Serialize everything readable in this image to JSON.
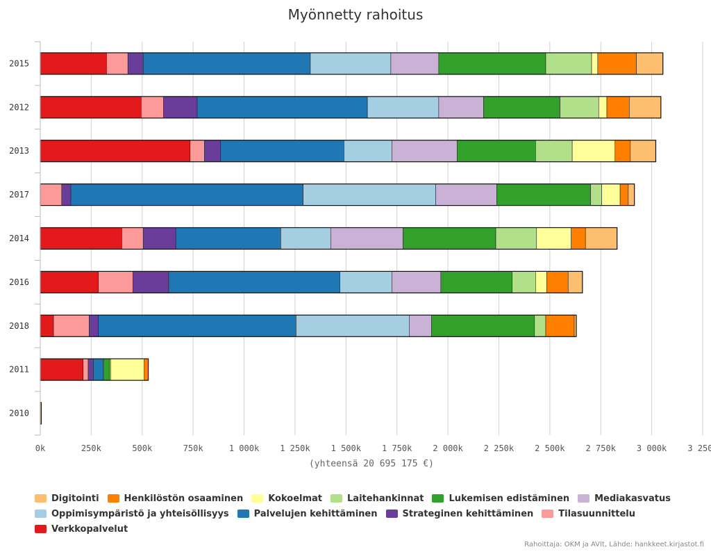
{
  "chart_data": {
    "type": "bar",
    "orientation": "horizontal",
    "stacked": true,
    "title": "Myönnetty rahoitus",
    "xlabel": "(yhteensä 20 695 175 €)",
    "ylabel": "",
    "xlim": [
      0,
      3250000
    ],
    "x_ticks": [
      0,
      250000,
      500000,
      750000,
      1000000,
      1250000,
      1500000,
      1750000,
      2000000,
      2250000,
      2500000,
      2750000,
      3000000,
      3250000
    ],
    "x_tick_labels": [
      "0k",
      "250k",
      "500k",
      "750k",
      "1 000k",
      "1 250k",
      "1 500k",
      "1 750k",
      "2 000k",
      "2 250k",
      "2 500k",
      "2 750k",
      "3 000k",
      "3 250k"
    ],
    "categories": [
      "2015",
      "2012",
      "2013",
      "2017",
      "2014",
      "2016",
      "2018",
      "2011",
      "2010"
    ],
    "series": [
      {
        "name": "Verkkopalvelut",
        "color": "#e31a1c",
        "values": [
          325000,
          495000,
          735000,
          0,
          400000,
          285000,
          65000,
          210000,
          0
        ]
      },
      {
        "name": "Tilasuunnittelu",
        "color": "#fb9a99",
        "values": [
          105000,
          110000,
          70000,
          105000,
          105000,
          170000,
          175000,
          25000,
          0
        ]
      },
      {
        "name": "Strateginen kehittäminen",
        "color": "#6a3d9a",
        "values": [
          75000,
          165000,
          80000,
          45000,
          160000,
          175000,
          45000,
          25000,
          0
        ]
      },
      {
        "name": "Palvelujen kehittäminen",
        "color": "#1f78b4",
        "values": [
          820000,
          835000,
          605000,
          1140000,
          515000,
          840000,
          970000,
          50000,
          0
        ]
      },
      {
        "name": "Oppimisympäristö ja yhteisöllisyys",
        "color": "#a6cee3",
        "values": [
          395000,
          350000,
          235000,
          650000,
          245000,
          255000,
          555000,
          0,
          0
        ]
      },
      {
        "name": "Mediakasvatus",
        "color": "#cab2d6",
        "values": [
          235000,
          220000,
          320000,
          300000,
          355000,
          240000,
          110000,
          0,
          0
        ]
      },
      {
        "name": "Lukemisen edistäminen",
        "color": "#33a02c",
        "values": [
          525000,
          375000,
          385000,
          460000,
          455000,
          350000,
          505000,
          30000,
          0
        ]
      },
      {
        "name": "Laitehankinnat",
        "color": "#b2df8a",
        "values": [
          225000,
          190000,
          180000,
          55000,
          200000,
          115000,
          55000,
          5000,
          0
        ]
      },
      {
        "name": "Kokoelmat",
        "color": "#ffff99",
        "values": [
          30000,
          40000,
          210000,
          90000,
          170000,
          55000,
          0,
          165000,
          0
        ]
      },
      {
        "name": "Henkilöstön osaaminen",
        "color": "#ff7f00",
        "values": [
          190000,
          110000,
          75000,
          40000,
          70000,
          105000,
          140000,
          20000,
          0
        ]
      },
      {
        "name": "Digitointi",
        "color": "#fdbf6f",
        "values": [
          130000,
          155000,
          125000,
          30000,
          155000,
          70000,
          10000,
          0,
          5000
        ]
      }
    ],
    "legend_order": [
      "Digitointi",
      "Henkilöstön osaaminen",
      "Kokoelmat",
      "Laitehankinnat",
      "Lukemisen edistäminen",
      "Mediakasvatus",
      "Oppimisympäristö ja yhteisöllisyys",
      "Palvelujen kehittäminen",
      "Strateginen kehittäminen",
      "Tilasuunnittelu",
      "Verkkopalvelut"
    ],
    "legend_position": "bottom",
    "grid": true
  },
  "credit": "Rahoittaja: OKM ja AVIt, Lähde: hankkeet.kirjastot.fi"
}
